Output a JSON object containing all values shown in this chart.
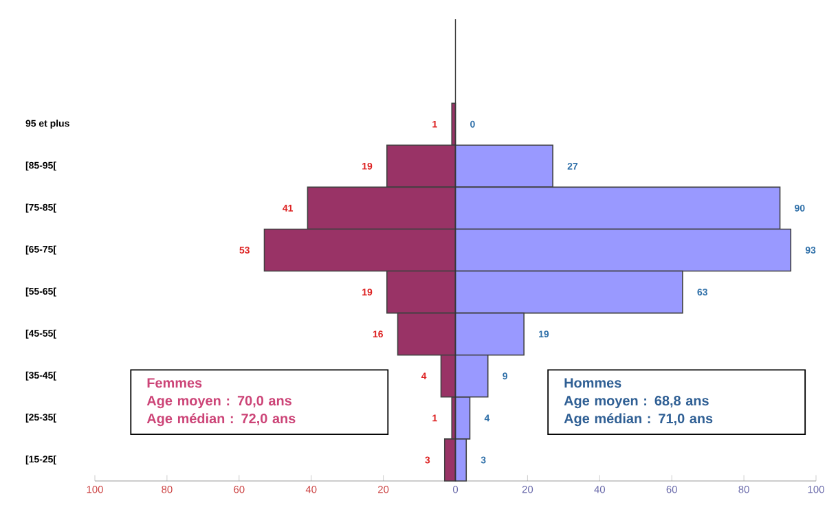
{
  "chart_data": [
    {
      "type": "bar",
      "orientation": "horizontal",
      "categories": [
        null,
        null,
        "95 et plus",
        "[85-95[",
        "[75-85[",
        "[65-75[",
        "[55-65[",
        "[45-55[",
        "[35-45[",
        "[25-35[",
        "[15-25["
      ],
      "series": [
        {
          "color": "#993366",
          "values": [
            null,
            null,
            1,
            19,
            41,
            53,
            19,
            16,
            4,
            1,
            3
          ],
          "value_labels": [
            null,
            null,
            "1",
            "19",
            "41",
            "53",
            "19",
            "16",
            "4",
            "1",
            "3"
          ]
        }
      ],
      "xlim": [
        100,
        0
      ],
      "xticks": [
        100,
        80,
        60,
        40,
        20
      ],
      "annotations": [
        "Femmes",
        "Age moyen :  70,0 ans",
        "Age médian : 72,0 ans"
      ]
    },
    {
      "type": "bar",
      "orientation": "horizontal",
      "categories": [
        null,
        null,
        null,
        null,
        null,
        null,
        null,
        null,
        null,
        null,
        null
      ],
      "series": [
        {
          "color": "#9999ff",
          "values": [
            null,
            null,
            0,
            27,
            90,
            93,
            63,
            19,
            9,
            4,
            3
          ],
          "value_labels": [
            null,
            null,
            "0",
            "27",
            "90",
            "93",
            "63",
            "19",
            "9",
            "4",
            "3"
          ]
        }
      ],
      "xlim": [
        0,
        100
      ],
      "xticks": [
        0,
        20,
        40,
        60,
        80,
        100
      ],
      "tick_labels": "x",
      "annotations": [
        "Hommes",
        "Age moyen :  68,8 ans",
        "Age médian : 71,0 ans"
      ]
    }
  ]
}
